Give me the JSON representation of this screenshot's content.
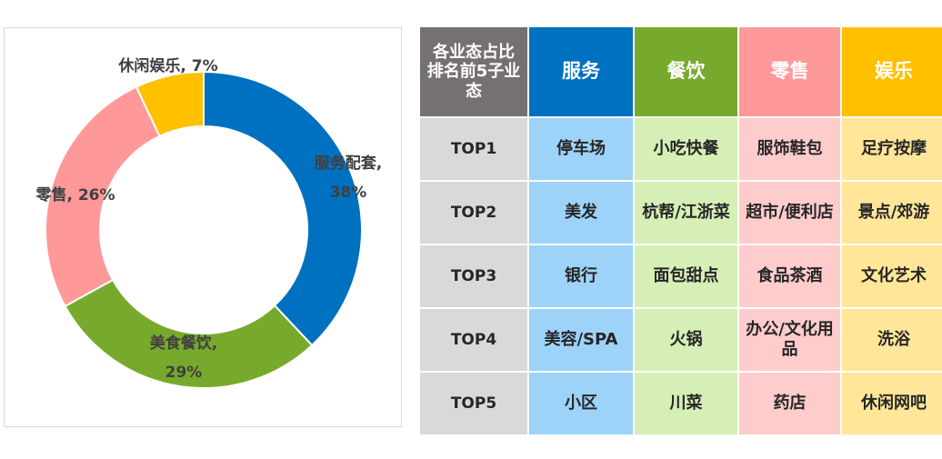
{
  "chart_data": {
    "type": "pie",
    "variant": "donut",
    "slices": [
      {
        "label": "服务配套",
        "value": 38,
        "label_lines": [
          "服务配套,",
          "38%"
        ],
        "color": "#0070c0"
      },
      {
        "label": "美食餐饮",
        "value": 29,
        "label_lines": [
          "美食餐饮,",
          "29%"
        ],
        "color": "#77aa2c"
      },
      {
        "label": "零售",
        "value": 26,
        "label_lines": [
          "零售, 26%"
        ],
        "color": "#ff9999"
      },
      {
        "label": "休闲娱乐",
        "value": 7,
        "label_lines": [
          "休闲娱乐, 7%"
        ],
        "color": "#ffc000"
      }
    ]
  },
  "table": {
    "corner": "各业态占比排名前5子业态",
    "headers": [
      {
        "label": "服务",
        "color": "#0070c0"
      },
      {
        "label": "餐饮",
        "color": "#77aa2c"
      },
      {
        "label": "零售",
        "color": "#ff9999"
      },
      {
        "label": "娱乐",
        "color": "#ffc000"
      }
    ],
    "body_colors": [
      "#9dd3f9",
      "#d6efb7",
      "#ffcccc",
      "#ffe699"
    ],
    "rows": [
      {
        "rank": "TOP1",
        "cells": [
          "停车场",
          "小吃快餐",
          "服饰鞋包",
          "足疗按摩"
        ]
      },
      {
        "rank": "TOP2",
        "cells": [
          "美发",
          "杭帮/江浙菜",
          "超市/便利店",
          "景点/郊游"
        ]
      },
      {
        "rank": "TOP3",
        "cells": [
          "银行",
          "面包甜点",
          "食品茶酒",
          "文化艺术"
        ]
      },
      {
        "rank": "TOP4",
        "cells": [
          "美容/SPA",
          "火锅",
          "办公/文化用品",
          "洗浴"
        ]
      },
      {
        "rank": "TOP5",
        "cells": [
          "小区",
          "川菜",
          "药店",
          "休闲网吧"
        ]
      }
    ]
  }
}
